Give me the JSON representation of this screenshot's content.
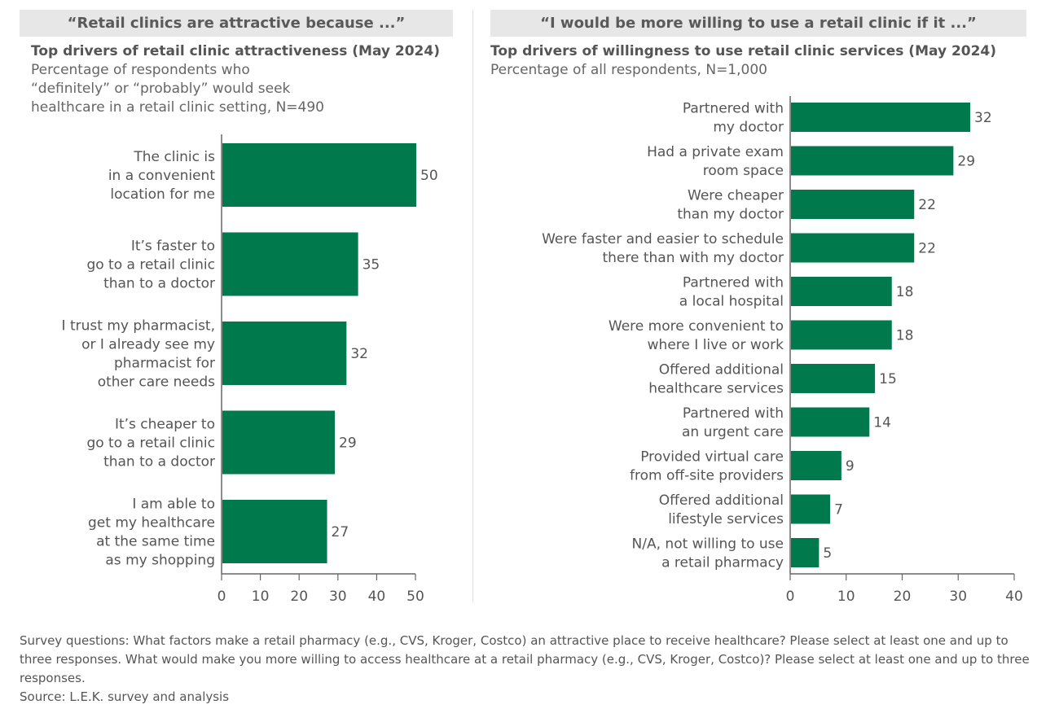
{
  "colors": {
    "bar": "#007a4d",
    "axis": "#555555",
    "banner": "#e6e7e6"
  },
  "chart_data": [
    {
      "type": "bar",
      "orientation": "horizontal",
      "banner": "“Retail clinics are attractive because ...”",
      "title": "Top drivers of retail clinic attractiveness (May 2024)",
      "subtitle": [
        "Percentage of respondents who",
        "“definitely” or “probably” would seek",
        "healthcare in a retail clinic setting, N=490"
      ],
      "categories": [
        [
          "The clinic is",
          "in a convenient",
          "location for me"
        ],
        [
          "It’s faster to",
          "go to a retail clinic",
          "than to a doctor"
        ],
        [
          "I trust my pharmacist,",
          "or I already see my",
          "pharmacist for",
          "other care needs"
        ],
        [
          "It’s cheaper to",
          "go to a retail clinic",
          "than to a doctor"
        ],
        [
          "I am able to",
          "get my healthcare",
          "at the same time",
          "as my shopping"
        ]
      ],
      "values": [
        50,
        35,
        32,
        29,
        27
      ],
      "xlim": [
        0,
        50
      ],
      "ticks": [
        0,
        10,
        20,
        30,
        40,
        50
      ],
      "grid": false
    },
    {
      "type": "bar",
      "orientation": "horizontal",
      "banner": "“I would be more willing to use a retail clinic if it ...”",
      "title": "Top drivers of willingness to use retail clinic services (May 2024)",
      "subtitle": [
        "Percentage of all respondents, N=1,000"
      ],
      "categories": [
        [
          "Partnered with",
          "my doctor"
        ],
        [
          "Had a private exam",
          "room space"
        ],
        [
          "Were cheaper",
          "than my doctor"
        ],
        [
          "Were faster and easier to schedule",
          "there than with my doctor"
        ],
        [
          "Partnered with",
          "a local hospital"
        ],
        [
          "Were more convenient to",
          "where I live or work"
        ],
        [
          "Offered additional",
          "healthcare services"
        ],
        [
          "Partnered with",
          "an urgent care"
        ],
        [
          "Provided virtual care",
          "from off-site providers"
        ],
        [
          "Offered additional",
          "lifestyle services"
        ],
        [
          "N/A, not willing to use",
          "a retail pharmacy"
        ]
      ],
      "values": [
        32,
        29,
        22,
        22,
        18,
        18,
        15,
        14,
        9,
        7,
        5
      ],
      "xlim": [
        0,
        40
      ],
      "ticks": [
        0,
        10,
        20,
        30,
        40
      ],
      "grid": false
    }
  ],
  "footnote": [
    "Survey questions: What factors make a retail pharmacy (e.g., CVS, Kroger, Costco) an attractive place to receive healthcare? Please select at least one and up to three responses. What would make you more willing to access healthcare at a retail pharmacy (e.g., CVS, Kroger, Costco)? Please select at least one and up to three responses.",
    "Source: L.E.K. survey and analysis"
  ]
}
